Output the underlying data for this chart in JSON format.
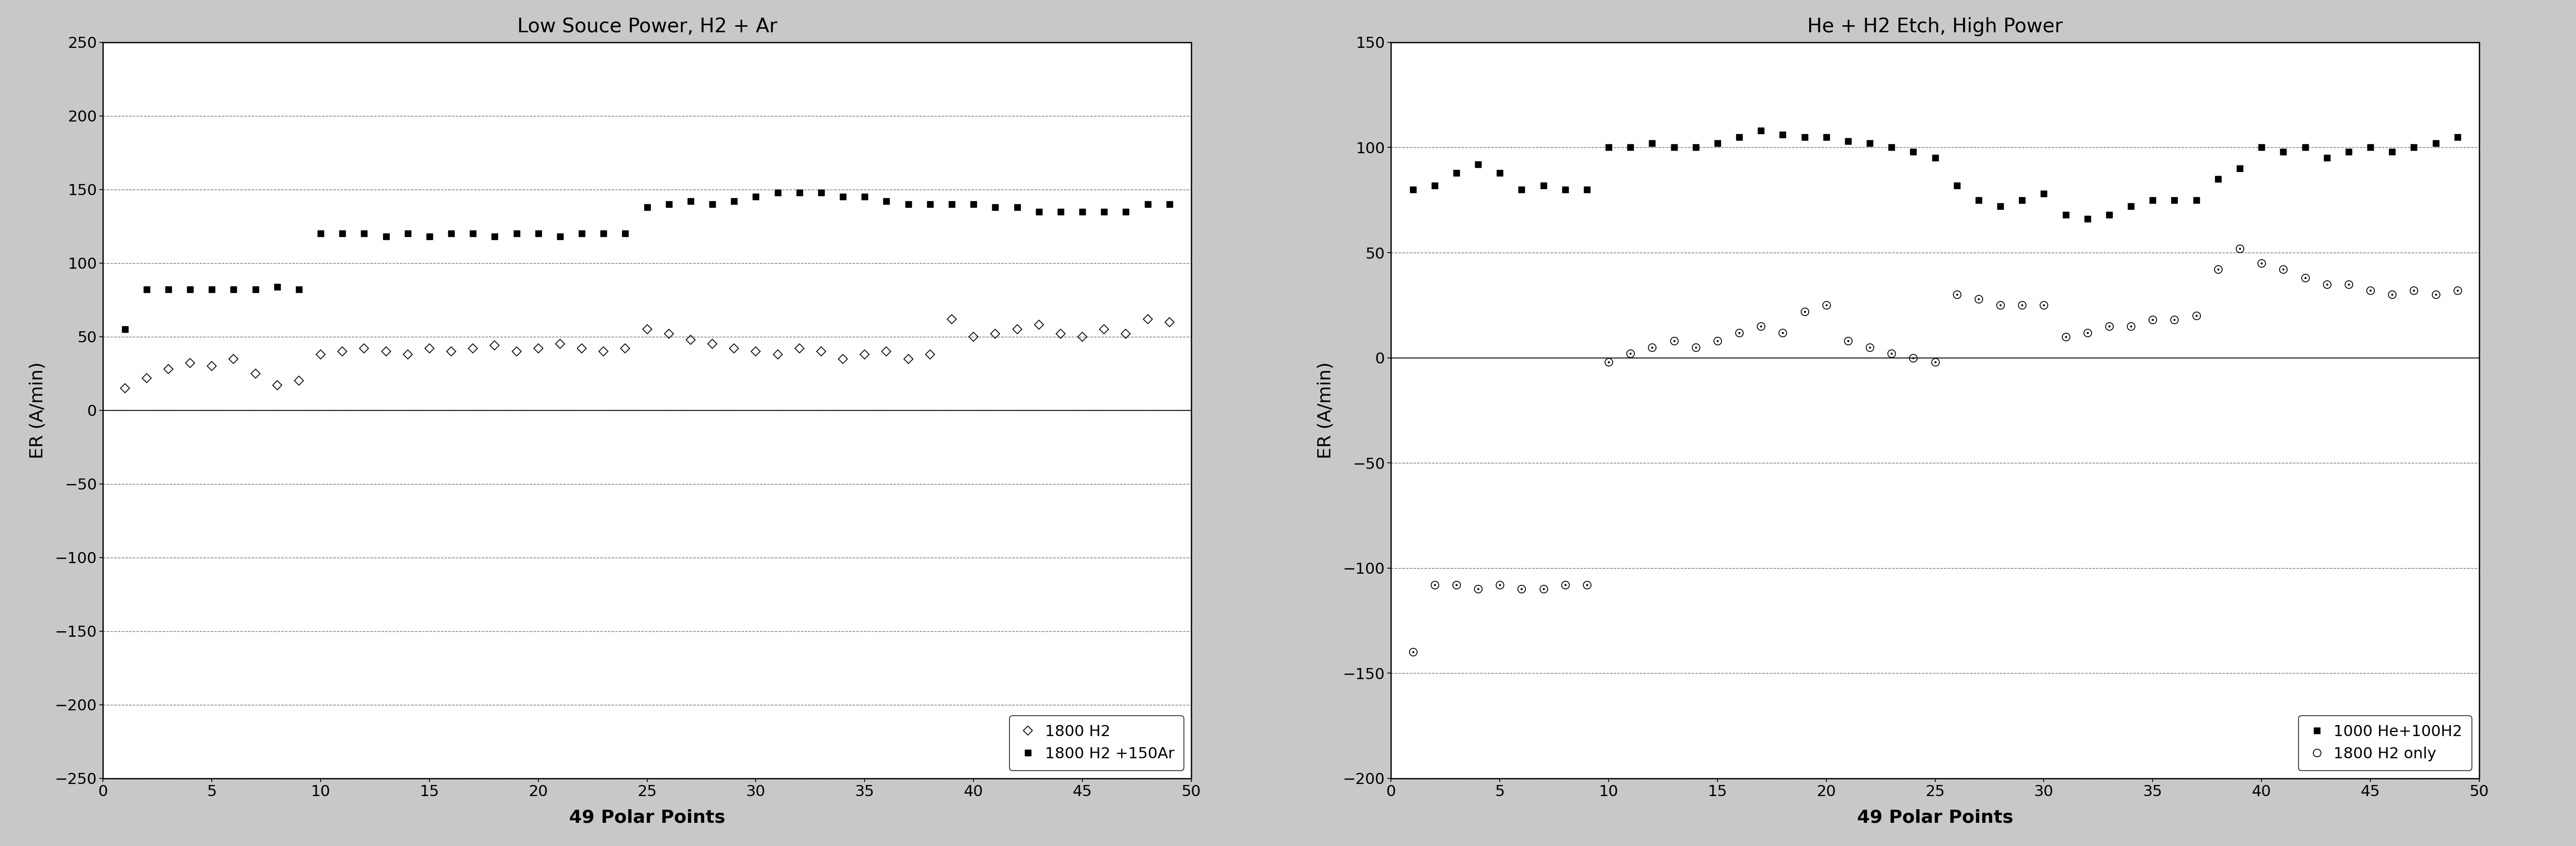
{
  "chart1": {
    "title": "Low Souce Power, H2 + Ar",
    "xlabel": "49 Polar Points",
    "ylabel": "ER (A/min)",
    "ylim": [
      -250,
      250
    ],
    "yticks": [
      -250,
      -200,
      -150,
      -100,
      -50,
      0,
      50,
      100,
      150,
      200,
      250
    ],
    "xlim": [
      0,
      50
    ],
    "xticks": [
      0,
      5,
      10,
      15,
      20,
      25,
      30,
      35,
      40,
      45,
      50
    ],
    "series1_label": "1800 H2",
    "series2_label": "1800 H2 +150Ar",
    "series1_x": [
      1,
      2,
      3,
      4,
      5,
      6,
      7,
      8,
      9,
      10,
      11,
      12,
      13,
      14,
      15,
      16,
      17,
      18,
      19,
      20,
      21,
      22,
      23,
      24,
      25,
      26,
      27,
      28,
      29,
      30,
      31,
      32,
      33,
      34,
      35,
      36,
      37,
      38,
      39,
      40,
      41,
      42,
      43,
      44,
      45,
      46,
      47,
      48,
      49
    ],
    "series1_y": [
      15,
      22,
      28,
      32,
      30,
      35,
      25,
      17,
      20,
      38,
      40,
      42,
      40,
      38,
      42,
      40,
      42,
      44,
      40,
      42,
      45,
      42,
      40,
      42,
      55,
      52,
      48,
      45,
      42,
      40,
      38,
      42,
      40,
      35,
      38,
      40,
      35,
      38,
      62,
      50,
      52,
      55,
      58,
      52,
      50,
      55,
      52,
      62,
      60
    ],
    "series2_x": [
      1,
      2,
      3,
      4,
      5,
      6,
      7,
      8,
      9,
      10,
      11,
      12,
      13,
      14,
      15,
      16,
      17,
      18,
      19,
      20,
      21,
      22,
      23,
      24,
      25,
      26,
      27,
      28,
      29,
      30,
      31,
      32,
      33,
      34,
      35,
      36,
      37,
      38,
      39,
      40,
      41,
      42,
      43,
      44,
      45,
      46,
      47,
      48,
      49
    ],
    "series2_y": [
      55,
      82,
      82,
      82,
      82,
      82,
      82,
      84,
      82,
      120,
      120,
      120,
      118,
      120,
      118,
      120,
      120,
      118,
      120,
      120,
      118,
      120,
      120,
      120,
      138,
      140,
      142,
      140,
      142,
      145,
      148,
      148,
      148,
      145,
      145,
      142,
      140,
      140,
      140,
      140,
      138,
      138,
      135,
      135,
      135,
      135,
      135,
      140,
      140
    ]
  },
  "chart2": {
    "title": "He + H2 Etch, High Power",
    "xlabel": "49 Polar Points",
    "ylabel": "ER (A/min)",
    "ylim": [
      -200,
      150
    ],
    "yticks": [
      -200,
      -150,
      -100,
      -50,
      0,
      50,
      100,
      150
    ],
    "xlim": [
      0,
      50
    ],
    "xticks": [
      0,
      5,
      10,
      15,
      20,
      25,
      30,
      35,
      40,
      45,
      50
    ],
    "series1_label": "1000 He+100H2",
    "series2_label": "1800 H2 only",
    "series1_x": [
      1,
      2,
      3,
      4,
      5,
      6,
      7,
      8,
      9,
      10,
      11,
      12,
      13,
      14,
      15,
      16,
      17,
      18,
      19,
      20,
      21,
      22,
      23,
      24,
      25,
      26,
      27,
      28,
      29,
      30,
      31,
      32,
      33,
      34,
      35,
      36,
      37,
      38,
      39,
      40,
      41,
      42,
      43,
      44,
      45,
      46,
      47,
      48,
      49
    ],
    "series1_y": [
      80,
      82,
      88,
      92,
      88,
      80,
      82,
      80,
      80,
      100,
      100,
      102,
      100,
      100,
      102,
      105,
      108,
      106,
      105,
      105,
      103,
      102,
      100,
      98,
      95,
      82,
      75,
      72,
      75,
      78,
      68,
      66,
      68,
      72,
      75,
      75,
      75,
      85,
      90,
      100,
      98,
      100,
      95,
      98,
      100,
      98,
      100,
      102,
      105
    ],
    "series2_x": [
      1,
      2,
      3,
      4,
      5,
      6,
      7,
      8,
      9,
      10,
      11,
      12,
      13,
      14,
      15,
      16,
      17,
      18,
      19,
      20,
      21,
      22,
      23,
      24,
      25,
      26,
      27,
      28,
      29,
      30,
      31,
      32,
      33,
      34,
      35,
      36,
      37,
      38,
      39,
      40,
      41,
      42,
      43,
      44,
      45,
      46,
      47,
      48,
      49
    ],
    "series2_y": [
      -140,
      -108,
      -108,
      -110,
      -108,
      -110,
      -110,
      -108,
      -108,
      -2,
      2,
      5,
      8,
      5,
      8,
      12,
      15,
      12,
      22,
      25,
      8,
      5,
      2,
      0,
      -2,
      30,
      28,
      25,
      25,
      25,
      10,
      12,
      15,
      15,
      18,
      18,
      20,
      42,
      52,
      45,
      42,
      38,
      35,
      35,
      32,
      30,
      32,
      30,
      32
    ]
  },
  "figure_bg": "#c8c8c8",
  "panel_bg": "#ffffff",
  "panel_border": "#000000"
}
